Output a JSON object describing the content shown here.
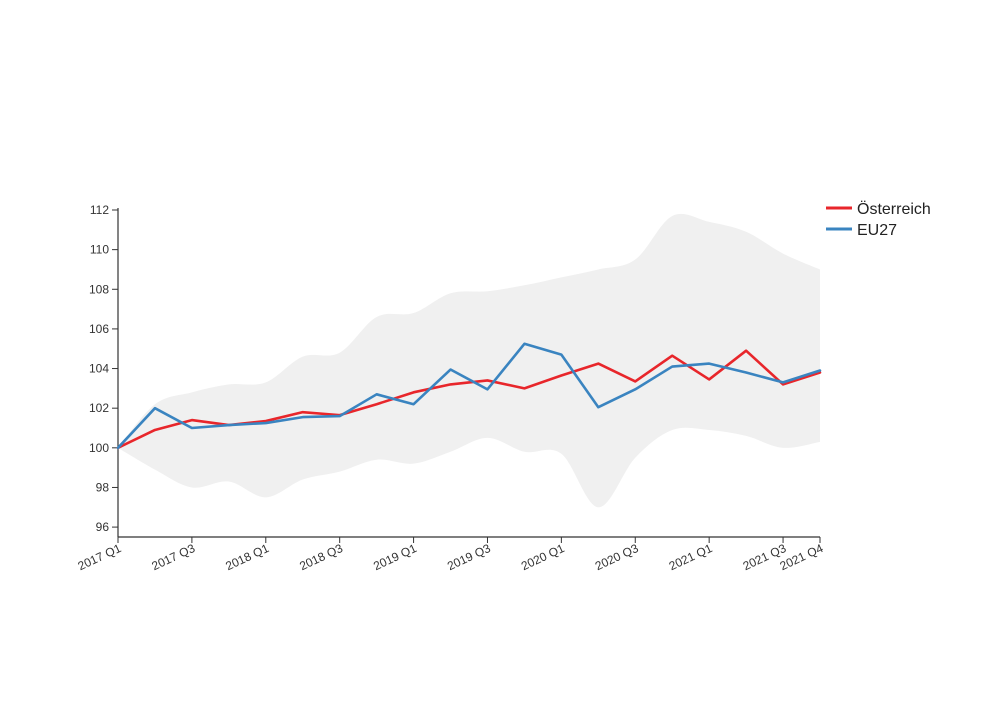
{
  "chart_data": {
    "type": "line",
    "title": "",
    "xlabel": "",
    "ylabel": "",
    "x": [
      "2017 Q1",
      "2017 Q2",
      "2017 Q3",
      "2017 Q4",
      "2018 Q1",
      "2018 Q2",
      "2018 Q3",
      "2018 Q4",
      "2019 Q1",
      "2019 Q2",
      "2019 Q3",
      "2019 Q4",
      "2020 Q1",
      "2020 Q2",
      "2020 Q3",
      "2020 Q4",
      "2021 Q1",
      "2021 Q2",
      "2021 Q3",
      "2021 Q4"
    ],
    "x_tick_labels": [
      "2017 Q1",
      "2017 Q3",
      "2018 Q1",
      "2018 Q3",
      "2019 Q1",
      "2019 Q3",
      "2020 Q1",
      "2020 Q3",
      "2021 Q1",
      "2021 Q3",
      "2021 Q4"
    ],
    "ylim": [
      95.5,
      112
    ],
    "y_ticks": [
      96,
      98,
      100,
      102,
      104,
      106,
      108,
      110,
      112
    ],
    "legend_position": "top-right",
    "series": [
      {
        "name": "Österreich",
        "color": "#e8262b",
        "values": [
          100.0,
          100.9,
          101.4,
          101.15,
          101.35,
          101.8,
          101.65,
          102.2,
          102.8,
          103.2,
          103.4,
          103.0,
          103.65,
          104.25,
          103.35,
          104.65,
          103.45,
          104.9,
          103.2,
          103.8
        ]
      },
      {
        "name": "EU27",
        "color": "#3a84c0",
        "values": [
          100.0,
          102.0,
          101.0,
          101.15,
          101.25,
          101.55,
          101.6,
          102.7,
          102.2,
          103.95,
          102.95,
          105.25,
          104.7,
          102.05,
          102.95,
          104.1,
          104.25,
          103.8,
          103.3,
          103.9
        ]
      }
    ],
    "band": {
      "color": "#f0f0f0",
      "upper": [
        100.0,
        102.2,
        102.8,
        103.2,
        103.3,
        104.6,
        104.8,
        106.6,
        106.8,
        107.8,
        107.9,
        108.2,
        108.6,
        109.0,
        109.5,
        111.7,
        111.4,
        110.9,
        109.8,
        109.0
      ],
      "lower": [
        100.0,
        98.9,
        98.0,
        98.3,
        97.5,
        98.4,
        98.8,
        99.4,
        99.2,
        99.8,
        100.5,
        99.8,
        99.7,
        97.0,
        99.5,
        100.9,
        100.9,
        100.6,
        100.0,
        100.3
      ]
    }
  }
}
